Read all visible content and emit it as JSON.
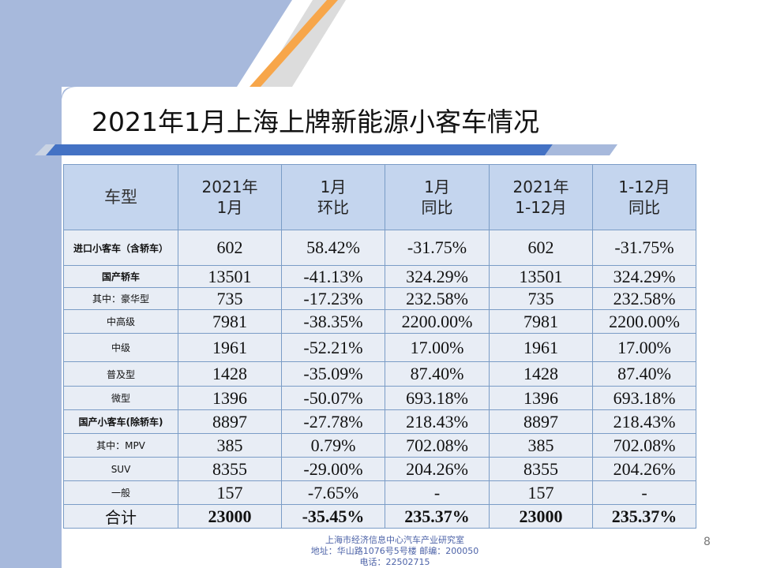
{
  "slide": {
    "title": "2021年1月上海上牌新能源小客车情况",
    "page_number": "8",
    "footer_lines": [
      "上海市经济信息中心汽车产业研究室",
      "地址：华山路1076号5号楼   邮编：200050",
      "电话：22502715"
    ]
  },
  "table": {
    "headers": [
      [
        "车型"
      ],
      [
        "2021年",
        "1月"
      ],
      [
        "1月",
        "环比"
      ],
      [
        "1月",
        "同比"
      ],
      [
        "2021年",
        "1-12月"
      ],
      [
        "1-12月",
        "同比"
      ]
    ],
    "rows": [
      {
        "label": "进口小客车（含轿车）",
        "cells": [
          "602",
          "58.42%",
          "-31.75%",
          "602",
          "-31.75%"
        ]
      },
      {
        "label": "国产轿车",
        "cells": [
          "13501",
          "-41.13%",
          "324.29%",
          "13501",
          "324.29%"
        ]
      },
      {
        "label": "其中：豪华型",
        "cells": [
          "735",
          "-17.23%",
          "232.58%",
          "735",
          "232.58%"
        ]
      },
      {
        "label": "中高级",
        "cells": [
          "7981",
          "-38.35%",
          "2200.00%",
          "7981",
          "2200.00%"
        ]
      },
      {
        "label": "中级",
        "cells": [
          "1961",
          "-52.21%",
          "17.00%",
          "1961",
          "17.00%"
        ]
      },
      {
        "label": "普及型",
        "cells": [
          "1428",
          "-35.09%",
          "87.40%",
          "1428",
          "87.40%"
        ]
      },
      {
        "label": "微型",
        "cells": [
          "1396",
          "-50.07%",
          "693.18%",
          "1396",
          "693.18%"
        ]
      },
      {
        "label": "国产小客车(除轿车)",
        "cells": [
          "8897",
          "-27.78%",
          "218.43%",
          "8897",
          "218.43%"
        ]
      },
      {
        "label": "其中：MPV",
        "cells": [
          "385",
          "0.79%",
          "702.08%",
          "385",
          "702.08%"
        ]
      },
      {
        "label": "SUV",
        "cells": [
          "8355",
          "-29.00%",
          "204.26%",
          "8355",
          "204.26%"
        ]
      },
      {
        "label": "一般",
        "cells": [
          "157",
          "-7.65%",
          "-",
          "157",
          "-"
        ]
      },
      {
        "label": "合计",
        "cells": [
          "23000",
          "-35.45%",
          "235.37%",
          "23000",
          "235.37%"
        ]
      }
    ]
  },
  "colors": {
    "header_bg": "#c4d5ee",
    "row_bg": "#e8edf5",
    "accent_blue": "#4472c4",
    "accent_orange": "#f7a64a",
    "side_panel": "#a7b9dc"
  }
}
